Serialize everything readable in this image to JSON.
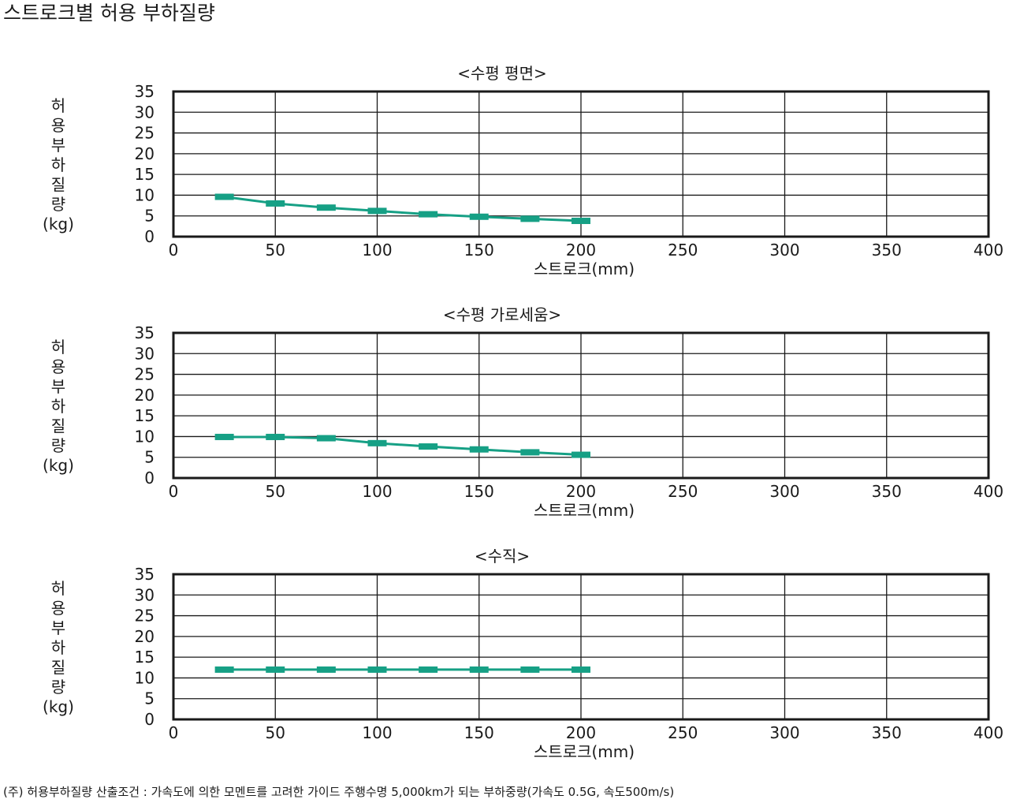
{
  "title": "스트로크별 허용 부하질량",
  "footnote": "(주) 허용부하질량 산출조건 : 가속도에 의한 모멘트를 고려한 가이드 주행수명 5,000km가 되는 부하중량(가속도 0.5G, 속도500m/s)",
  "colors": {
    "series": "#16a085",
    "grid": "#1a1a1a",
    "text": "#1a1a1a"
  },
  "chart_data": [
    {
      "type": "line",
      "title": "<수평 평면>",
      "xlabel": "스트로크(mm)",
      "ylabel_chars": [
        "허",
        "용",
        "부",
        "하",
        "질",
        "량"
      ],
      "ylabel_unit": "(kg)",
      "xlim": [
        0,
        400
      ],
      "ylim": [
        0,
        35
      ],
      "xticks": [
        "0",
        "50",
        "100",
        "150",
        "200",
        "250",
        "300",
        "350",
        "400"
      ],
      "yticks": [
        "0",
        "5",
        "10",
        "15",
        "20",
        "25",
        "30",
        "35"
      ],
      "grid": true,
      "series": [
        {
          "x": [
            25,
            50,
            75,
            100,
            125,
            150,
            175,
            200
          ],
          "y": [
            9.6,
            8.0,
            7.0,
            6.2,
            5.4,
            4.8,
            4.3,
            3.8
          ]
        }
      ]
    },
    {
      "type": "line",
      "title": "<수평 가로세움>",
      "xlabel": "스트로크(mm)",
      "ylabel_chars": [
        "허",
        "용",
        "부",
        "하",
        "질",
        "량"
      ],
      "ylabel_unit": "(kg)",
      "xlim": [
        0,
        400
      ],
      "ylim": [
        0,
        35
      ],
      "xticks": [
        "0",
        "50",
        "100",
        "150",
        "200",
        "250",
        "300",
        "350",
        "400"
      ],
      "yticks": [
        "0",
        "5",
        "10",
        "15",
        "20",
        "25",
        "30",
        "35"
      ],
      "grid": true,
      "series": [
        {
          "x": [
            25,
            50,
            75,
            100,
            125,
            150,
            175,
            200
          ],
          "y": [
            9.9,
            9.9,
            9.6,
            8.4,
            7.6,
            6.9,
            6.2,
            5.6
          ]
        }
      ]
    },
    {
      "type": "line",
      "title": "<수직>",
      "xlabel": "스트로크(mm)",
      "ylabel_chars": [
        "허",
        "용",
        "부",
        "하",
        "질",
        "량"
      ],
      "ylabel_unit": "(kg)",
      "xlim": [
        0,
        400
      ],
      "ylim": [
        0,
        35
      ],
      "xticks": [
        "0",
        "50",
        "100",
        "150",
        "200",
        "250",
        "300",
        "350",
        "400"
      ],
      "yticks": [
        "0",
        "5",
        "10",
        "15",
        "20",
        "25",
        "30",
        "35"
      ],
      "grid": true,
      "series": [
        {
          "x": [
            25,
            50,
            75,
            100,
            125,
            150,
            175,
            200
          ],
          "y": [
            12,
            12,
            12,
            12,
            12,
            12,
            12,
            12
          ]
        }
      ]
    }
  ]
}
